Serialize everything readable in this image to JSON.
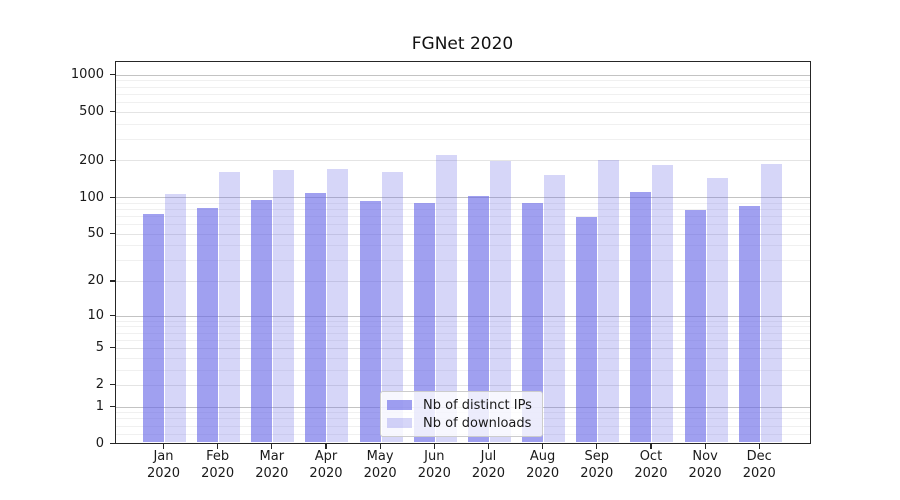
{
  "title": "FGNet 2020",
  "chart_data": {
    "type": "bar",
    "title": "FGNet 2020",
    "categories": [
      "Jan 2020",
      "Feb 2020",
      "Mar 2020",
      "Apr 2020",
      "May 2020",
      "Jun 2020",
      "Jul 2020",
      "Aug 2020",
      "Sep 2020",
      "Oct 2020",
      "Nov 2020",
      "Dec 2020"
    ],
    "month_labels": [
      "Jan",
      "Feb",
      "Mar",
      "Apr",
      "May",
      "Jun",
      "Jul",
      "Aug",
      "Sep",
      "Oct",
      "Nov",
      "Dec"
    ],
    "year_label": "2020",
    "series": [
      {
        "name": "Nb of distinct IPs",
        "values": [
          72,
          81,
          94,
          108,
          93,
          89,
          102,
          89,
          69,
          110,
          78,
          85
        ]
      },
      {
        "name": "Nb of downloads",
        "values": [
          107,
          160,
          167,
          169,
          161,
          223,
          199,
          153,
          201,
          184,
          145,
          188
        ]
      }
    ],
    "xlabel": "",
    "ylabel": "",
    "yscale": "log(1+y)",
    "ylim": [
      0,
      1300
    ],
    "y_ticks": [
      0,
      1,
      2,
      5,
      10,
      20,
      50,
      100,
      200,
      500,
      1000
    ],
    "y_major_ticks": [
      1,
      10,
      100,
      1000
    ],
    "y_minor_gridlines": [
      0.2,
      0.4,
      0.6,
      0.8,
      3,
      4,
      6,
      7,
      8,
      9,
      30,
      40,
      60,
      70,
      80,
      90,
      300,
      400,
      600,
      700,
      800,
      900
    ],
    "grid": "on",
    "legend_position": "lower center",
    "colors": {
      "ips_fill": "rgba(102,102,230,0.62)",
      "downloads_fill": "rgba(102,102,230,0.27)",
      "grid_major": "#c3c3c3",
      "grid_labeled_minor": "#e4e4e4",
      "grid_faint_minor": "#f0f0f0",
      "spine": "#262626",
      "text": "#1a1a1a"
    }
  }
}
